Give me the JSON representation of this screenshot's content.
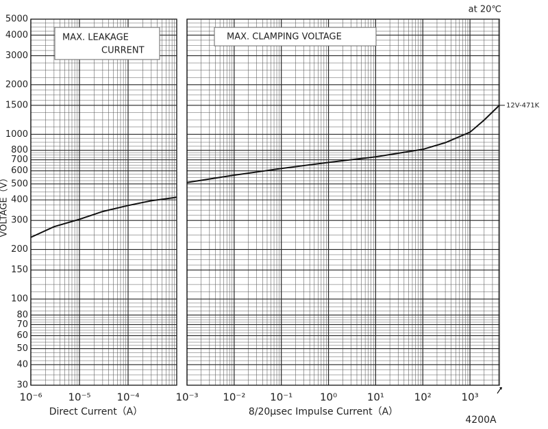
{
  "chart_data": [
    {
      "type": "line",
      "title": "MAX.    LEAKAGE",
      "subtitle": "CURRENT",
      "xlabel": "Direct Current（A）",
      "ylabel": "VOLTAGE（V）",
      "note": "at 20℃",
      "xlog": true,
      "ylog": true,
      "grid": true,
      "xlim": [
        1e-06,
        0.001
      ],
      "xticks": [
        {
          "value": 1e-06,
          "label": "10⁻⁶"
        },
        {
          "value": 1e-05,
          "label": "10⁻⁵"
        },
        {
          "value": 0.0001,
          "label": "10⁻⁴"
        }
      ],
      "ylim": [
        30,
        5000
      ],
      "yticks": [
        30,
        40,
        50,
        60,
        70,
        80,
        100,
        150,
        200,
        300,
        400,
        500,
        600,
        700,
        800,
        1000,
        1500,
        2000,
        3000,
        4000,
        5000
      ],
      "series": [
        {
          "name": null,
          "color": "#111111",
          "x": [
            1e-06,
            3e-06,
            1e-05,
            3e-05,
            0.0001,
            0.0003,
            0.001
          ],
          "values": [
            237,
            275,
            305,
            340,
            370,
            395,
            415
          ]
        }
      ]
    },
    {
      "type": "line",
      "title": "MAX. CLAMPING VOLTAGE",
      "xlabel": "8/20μsec Impulse Current（A）",
      "annotation": "4200A",
      "xlog": true,
      "ylog": true,
      "grid": true,
      "xlim": [
        0.001,
        4200
      ],
      "xticks": [
        {
          "value": 0.001,
          "label": "10⁻³"
        },
        {
          "value": 0.01,
          "label": "10⁻²"
        },
        {
          "value": 0.1,
          "label": "10⁻¹"
        },
        {
          "value": 1,
          "label": "10⁰"
        },
        {
          "value": 10,
          "label": "10¹"
        },
        {
          "value": 100,
          "label": "10²"
        },
        {
          "value": 1000,
          "label": "10³"
        }
      ],
      "ylim": [
        30,
        5000
      ],
      "yticks": [
        30,
        40,
        50,
        60,
        70,
        80,
        100,
        150,
        200,
        300,
        400,
        500,
        600,
        700,
        800,
        1000,
        1500,
        2000,
        3000,
        4000,
        5000
      ],
      "series": [
        {
          "name": "12V-471K",
          "color": "#111111",
          "x": [
            0.001,
            0.01,
            0.1,
            1,
            10,
            100,
            300,
            1000,
            2000,
            4200
          ],
          "values": [
            510,
            565,
            620,
            675,
            730,
            810,
            890,
            1030,
            1220,
            1500
          ]
        }
      ]
    }
  ]
}
